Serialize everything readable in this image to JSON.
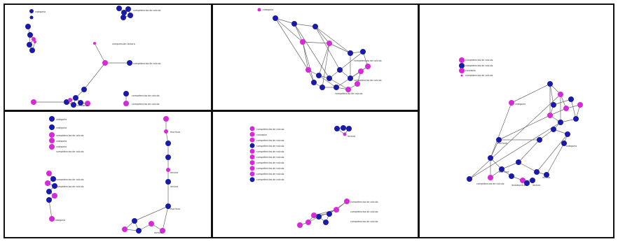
{
  "colors": {
    "node_blue": "#1a1aa8",
    "node_magenta": "#d62ad6",
    "edge": "#6a6a6a",
    "frame": "#111111",
    "background": "#ffffff",
    "label": "#333333"
  },
  "panels": [
    {
      "id": "panel-1",
      "description_free": true
    },
    {
      "id": "panel-2",
      "description_free": true
    },
    {
      "id": "panel-3",
      "description_free": true
    },
    {
      "id": "panel-4",
      "description_free": true
    },
    {
      "id": "panel-5",
      "description_free": true
    }
  ],
  "labels": {
    "p1_a": "categoria",
    "p1_b": "competencias de calculo",
    "p1_c": "comprension lectora",
    "p1_d": "competencias de calculo",
    "p1_e": "conceptos",
    "p1_f": "competencias de calculo",
    "p1_g": "competencias de calculo",
    "p2_a": "categoria",
    "p2_b": "competencias de calculo",
    "p2_c": "competencias de calculo",
    "p2_d": "competencias de calculo",
    "p3_legend_1": "competencias de calculo",
    "p3_legend_2": "competencias de calculo",
    "p3_legend_3": "concepto",
    "p3_legend_4": "competencias de calculo",
    "p3_a": "categoria",
    "p3_b": "categoria",
    "p3_c": "escritura",
    "p3_d": "escritura",
    "p3_e": "lectura",
    "p3_f": "lectoescritura",
    "p3_g": "lectura",
    "p3_h": "competencias de calculo",
    "p4_legend_1": "categoria",
    "p4_legend_2": "categoria",
    "p4_legend_3": "competencias de calculo",
    "p4_legend_4": "categoria",
    "p4_legend_5": "categoria",
    "p4_legend_6": "competencias de calculo",
    "p4_a": "competencias de calculo",
    "p4_b": "competencias de calculo",
    "p4_c": "categoria",
    "p4_d": "escritura",
    "p4_e": "lectura",
    "p4_f": "lectura",
    "p4_g": "escritura",
    "p4_h": "lectura",
    "p5_legend_1": "competencias de calculo",
    "p5_legend_2": "concepto",
    "p5_legend_3": "competencias de calculo",
    "p5_legend_4": "competencias de calculo",
    "p5_legend_5": "competencias de calculo",
    "p5_legend_6": "competencias de calculo",
    "p5_legend_7": "competencias de calculo",
    "p5_legend_8": "competencias de calculo",
    "p5_legend_9": "competencias de calculo",
    "p5_legend_10": "competencias de calculo",
    "p5_a": "competencias de calculo",
    "p5_b": "competencias de calculo",
    "p5_c": "competencias de calculo",
    "p5_d": "lectura"
  }
}
